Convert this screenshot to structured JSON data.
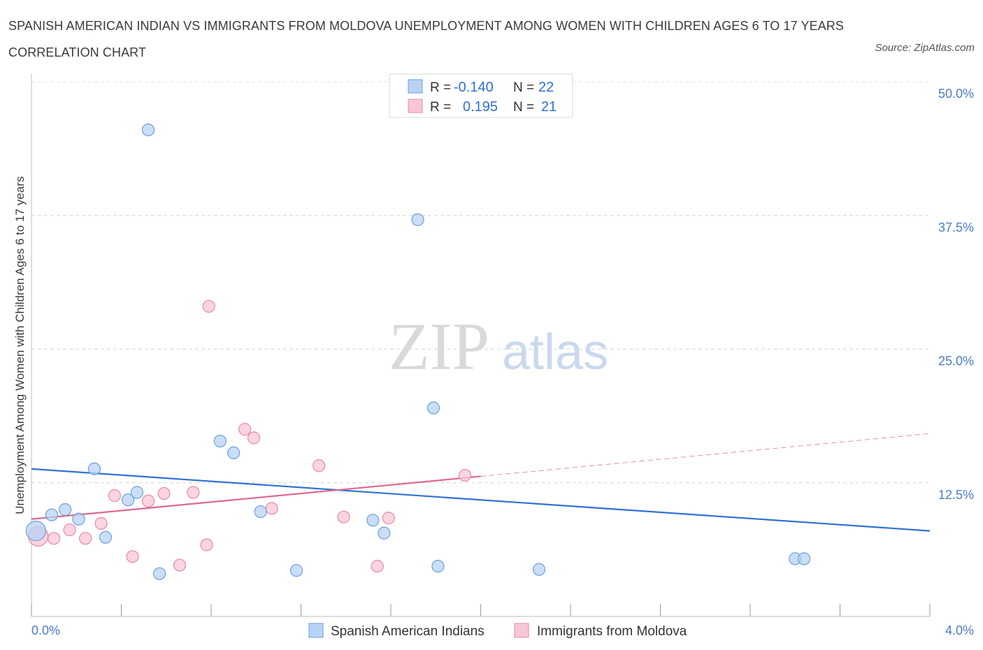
{
  "header": {
    "title": "SPANISH AMERICAN INDIAN VS IMMIGRANTS FROM MOLDOVA UNEMPLOYMENT AMONG WOMEN WITH CHILDREN AGES 6 TO 17 YEARS CORRELATION CHART",
    "source": "Source: ZipAtlas.com"
  },
  "watermark": {
    "zip": "ZIP",
    "atlas": "atlas"
  },
  "legend_box": {
    "rows": [
      {
        "r_label": "R =",
        "r_value": "-0.140",
        "n_label": "N =",
        "n_value": "22",
        "color": "#b8d3f5",
        "stroke": "#6a9fe0"
      },
      {
        "r_label": "R =",
        "r_value": "0.195",
        "n_label": "N =",
        "n_value": "21",
        "color": "#f8c6d6",
        "stroke": "#e58aa8"
      }
    ]
  },
  "chart_data": {
    "type": "scatter",
    "title": "SPANISH AMERICAN INDIAN VS IMMIGRANTS FROM MOLDOVA UNEMPLOYMENT AMONG WOMEN WITH CHILDREN AGES 6 TO 17 YEARS CORRELATION CHART",
    "xlabel": "",
    "ylabel": "Unemployment Among Women with Children Ages 6 to 17 years",
    "xlim": [
      0,
      4.0
    ],
    "ylim": [
      0,
      50.0
    ],
    "x_tick_labels": [
      "0.0%",
      "4.0%"
    ],
    "y_tick_labels": [
      "12.5%",
      "25.0%",
      "37.5%",
      "50.0%"
    ],
    "y_ticks": [
      12.5,
      25.0,
      37.5,
      50.0
    ],
    "grid": true,
    "legend_position": "bottom-center",
    "series": [
      {
        "name": "Spanish American Indians",
        "color": "#6a9fe0",
        "fill": "#b8d3f5",
        "points": [
          [
            0.02,
            8.0
          ],
          [
            0.09,
            9.5
          ],
          [
            0.15,
            10.0
          ],
          [
            0.21,
            9.1
          ],
          [
            0.28,
            13.8
          ],
          [
            0.33,
            7.4
          ],
          [
            0.43,
            10.9
          ],
          [
            0.47,
            11.6
          ],
          [
            0.52,
            45.5
          ],
          [
            0.57,
            4.0
          ],
          [
            0.84,
            16.4
          ],
          [
            0.9,
            15.3
          ],
          [
            1.02,
            9.8
          ],
          [
            1.18,
            4.3
          ],
          [
            1.52,
            9.0
          ],
          [
            1.57,
            7.8
          ],
          [
            1.72,
            37.1
          ],
          [
            1.79,
            19.5
          ],
          [
            1.81,
            4.7
          ],
          [
            2.26,
            4.4
          ],
          [
            3.4,
            5.4
          ],
          [
            3.44,
            5.4
          ]
        ],
        "trend": {
          "x": [
            0.0,
            4.0
          ],
          "y": [
            13.8,
            8.0
          ]
        }
      },
      {
        "name": "Immigrants from Moldova",
        "color": "#e58aa8",
        "fill": "#f8c6d6",
        "points": [
          [
            0.03,
            7.5
          ],
          [
            0.1,
            7.3
          ],
          [
            0.17,
            8.1
          ],
          [
            0.24,
            7.3
          ],
          [
            0.31,
            8.7
          ],
          [
            0.37,
            11.3
          ],
          [
            0.45,
            5.6
          ],
          [
            0.52,
            10.8
          ],
          [
            0.59,
            11.5
          ],
          [
            0.66,
            4.8
          ],
          [
            0.72,
            11.6
          ],
          [
            0.78,
            6.7
          ],
          [
            0.79,
            29.0
          ],
          [
            0.95,
            17.5
          ],
          [
            0.99,
            16.7
          ],
          [
            1.07,
            10.1
          ],
          [
            1.28,
            14.1
          ],
          [
            1.39,
            9.3
          ],
          [
            1.54,
            4.7
          ],
          [
            1.59,
            9.2
          ],
          [
            1.93,
            13.2
          ]
        ],
        "trend": {
          "x": [
            0.0,
            2.0
          ],
          "y": [
            9.1,
            13.1
          ]
        },
        "trend_extension": {
          "x": [
            2.0,
            4.0
          ],
          "y": [
            13.1,
            17.1
          ]
        }
      }
    ]
  },
  "bottom_legend": [
    {
      "label": "Spanish American Indians",
      "color": "#b8d3f5",
      "stroke": "#6a9fe0"
    },
    {
      "label": "Immigrants from Moldova",
      "color": "#f8c6d6",
      "stroke": "#e58aa8"
    }
  ]
}
